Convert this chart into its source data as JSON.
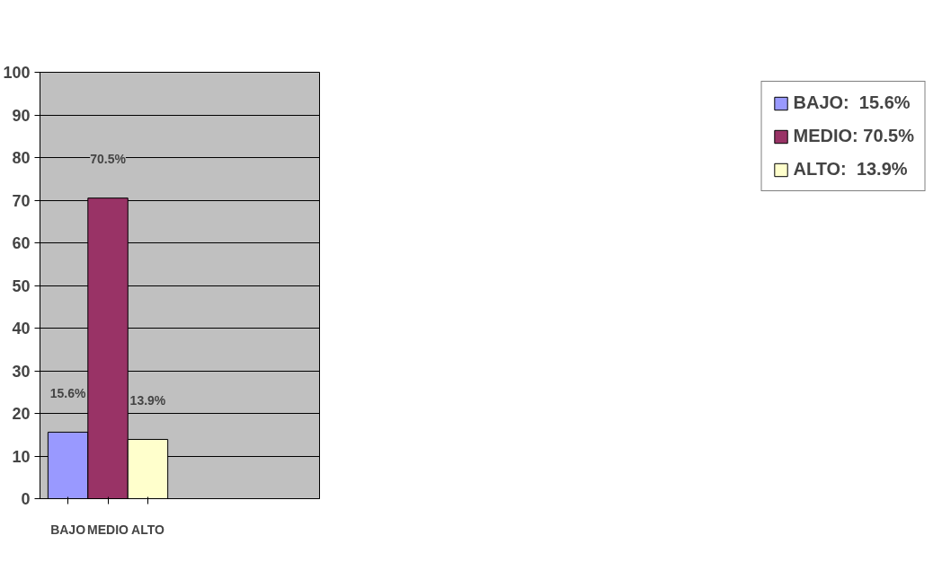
{
  "chart_data": {
    "type": "bar",
    "stacked": true,
    "categories": [
      "BAJO",
      "MEDIO",
      "ALTO"
    ],
    "series": [
      {
        "name": "BAJO:  15.6%",
        "color": "#9999ff",
        "values": [
          15.6,
          null,
          null
        ],
        "value_labels": [
          "15.6%",
          null,
          null
        ]
      },
      {
        "name": "MEDIO: 70.5%",
        "color": "#993366",
        "values": [
          null,
          70.5,
          null
        ],
        "value_labels": [
          null,
          "70.5%",
          null
        ]
      },
      {
        "name": "ALTO:  13.9%",
        "color": "#ffffcc",
        "values": [
          null,
          null,
          13.9
        ],
        "value_labels": [
          null,
          null,
          "13.9%"
        ]
      }
    ],
    "ylim": [
      0,
      100
    ],
    "yticks": [
      0,
      10,
      20,
      30,
      40,
      50,
      60,
      70,
      80,
      90,
      100
    ],
    "grid": "y",
    "legend": "right"
  }
}
